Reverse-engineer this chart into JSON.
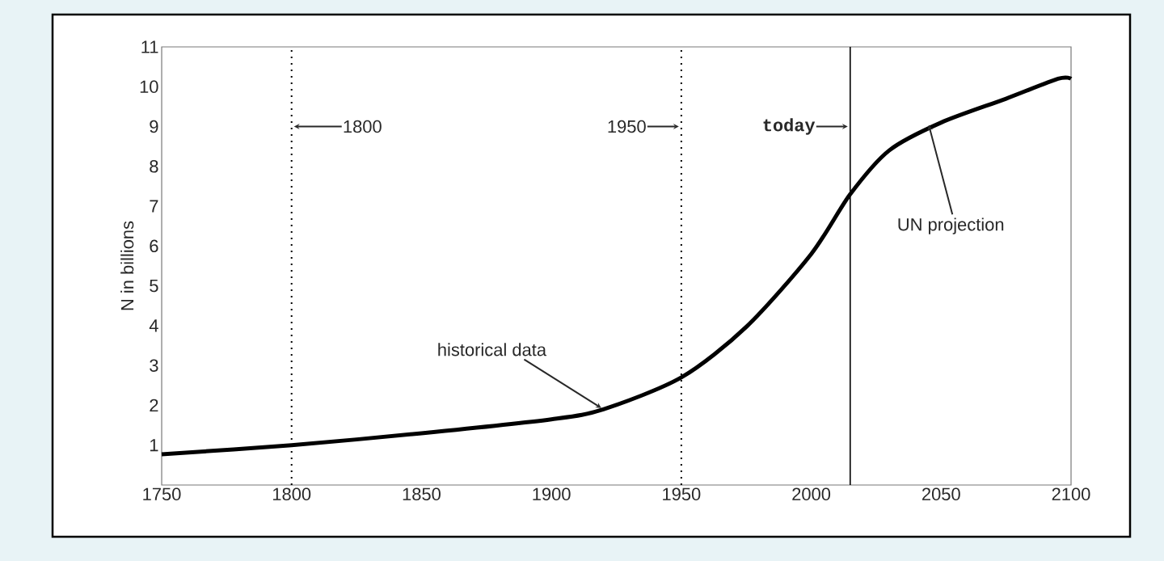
{
  "chart_data": {
    "type": "line",
    "ylabel": "N in billions",
    "x": [
      1750,
      1800,
      1850,
      1900,
      1920,
      1950,
      1975,
      2000,
      2015,
      2030,
      2050,
      2075,
      2095,
      2100
    ],
    "series": [
      {
        "color": "#000000",
        "values": [
          0.77,
          1.0,
          1.3,
          1.65,
          1.9,
          2.7,
          3.97,
          5.8,
          7.3,
          8.4,
          9.1,
          9.7,
          10.2,
          10.2
        ]
      }
    ],
    "xlim": [
      1750,
      2100
    ],
    "xticks": [
      1750,
      1800,
      1850,
      1900,
      1950,
      2000,
      2050,
      2100
    ],
    "ylim": [
      0,
      11
    ],
    "yticks": [
      1,
      2,
      3,
      4,
      5,
      6,
      7,
      8,
      9,
      10,
      11
    ],
    "grid": false,
    "marker": "none",
    "line_style": "solid",
    "ref_lines": [
      {
        "axis": "x",
        "value": 1800,
        "label": "1800",
        "line_style": "dotted"
      },
      {
        "axis": "x",
        "value": 1950,
        "label": "1950",
        "line_style": "dotted"
      },
      {
        "axis": "x",
        "value": 2015,
        "label": "today",
        "line_style": "solid"
      }
    ],
    "annotations": [
      {
        "text": "historical data",
        "x": 1920,
        "y": 1.9
      },
      {
        "text": "UN projection",
        "x": 2045,
        "y": 9.1
      }
    ]
  }
}
